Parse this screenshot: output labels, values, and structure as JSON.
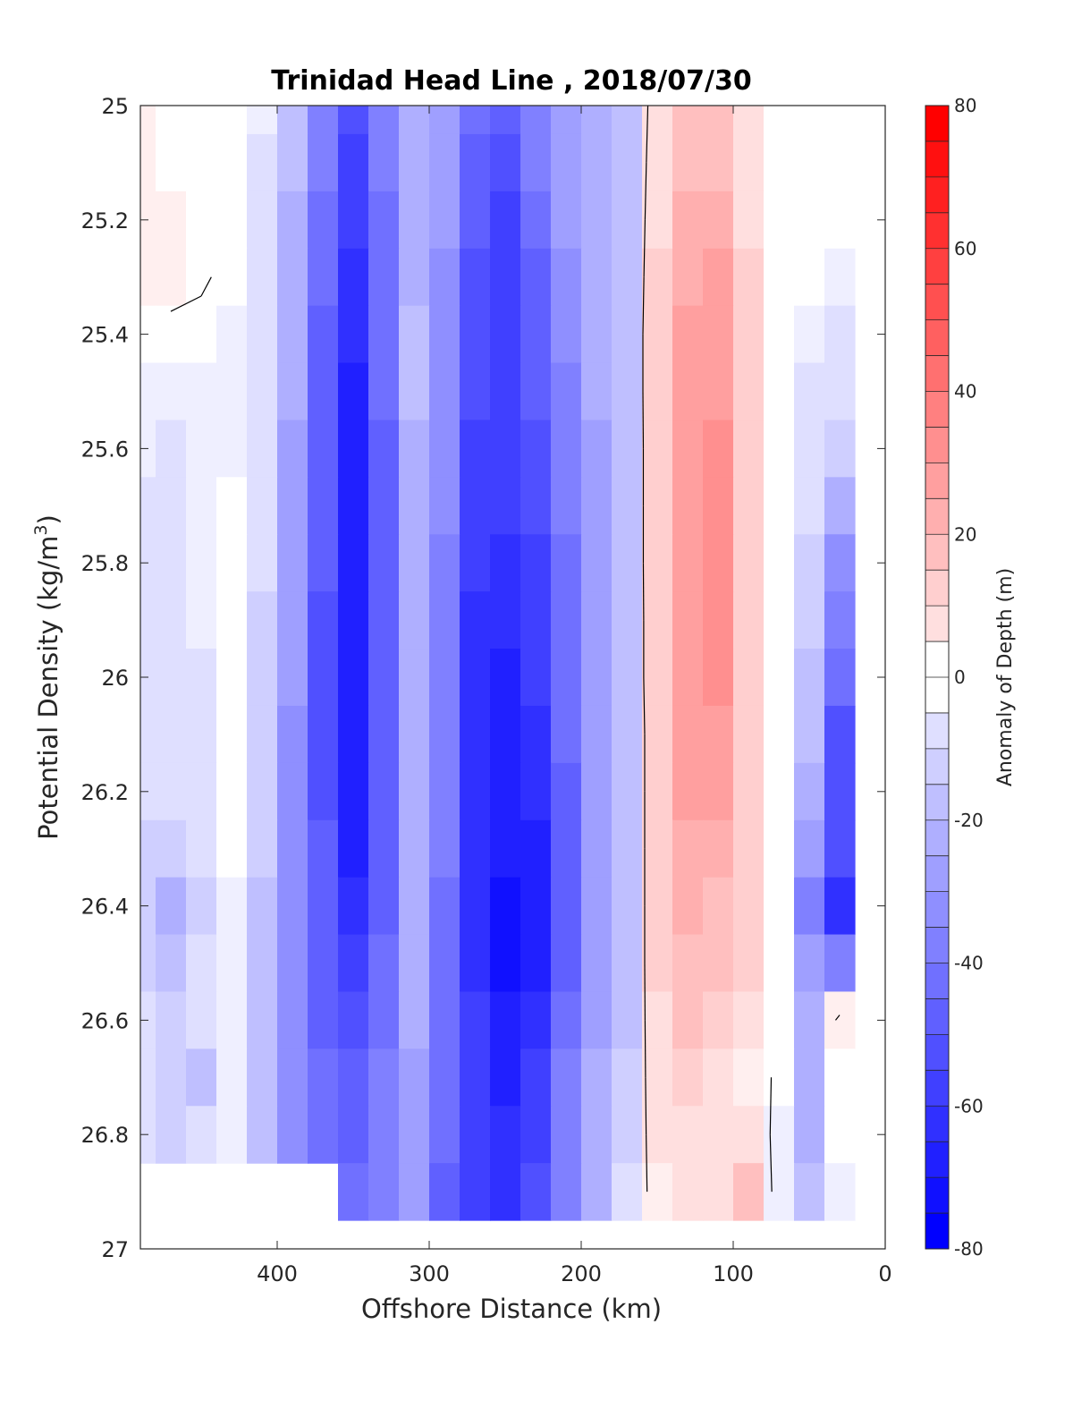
{
  "chart_data": {
    "type": "heatmap",
    "title": "Trinidad Head Line , 2018/07/30",
    "xlabel": "Offshore Distance (km)",
    "ylabel_main": "Potential Density (kg/m",
    "ylabel_sup": "3",
    "ylabel_end": ")",
    "colorbar_label": "Anomaly of Depth (m)",
    "xlim": [
      490,
      0
    ],
    "x_reversed": true,
    "ylim": [
      25,
      27
    ],
    "y_reversed": true,
    "clim": [
      -80,
      80
    ],
    "colormap": {
      "negative": "#0000ff",
      "zero": "#ffffff",
      "positive": "#ff0000"
    },
    "contour_level": 0,
    "contour_color": "#000000",
    "x_ticks": [
      400,
      300,
      200,
      100,
      0
    ],
    "y_ticks": [
      25,
      25.2,
      25.4,
      25.6,
      25.8,
      26,
      26.2,
      26.4,
      26.6,
      26.8,
      27
    ],
    "y_tick_labels": [
      "25",
      "25.2",
      "25.4",
      "25.6",
      "25.8",
      "26",
      "26.2",
      "26.4",
      "26.6",
      "26.8",
      "27"
    ],
    "colorbar_ticks": [
      80,
      60,
      40,
      20,
      0,
      -20,
      -40,
      -60,
      -80
    ],
    "x": [
      490,
      470,
      450,
      430,
      410,
      390,
      370,
      350,
      330,
      310,
      290,
      270,
      250,
      230,
      210,
      190,
      170,
      150,
      130,
      110,
      90,
      70,
      50,
      30
    ],
    "y": [
      25.0,
      25.1,
      25.2,
      25.3,
      25.4,
      25.5,
      25.6,
      25.7,
      25.8,
      25.9,
      26.0,
      26.1,
      26.2,
      26.3,
      26.4,
      26.5,
      26.6,
      26.7,
      26.8,
      26.9
    ],
    "z": [
      [
        3,
        0,
        0,
        0,
        -6,
        -22,
        -40,
        -55,
        -40,
        -25,
        -30,
        -45,
        -50,
        -40,
        -30,
        -25,
        -18,
        8,
        18,
        18,
        8,
        0,
        0,
        0
      ],
      [
        4,
        2,
        0,
        0,
        -8,
        -22,
        -42,
        -58,
        -42,
        -25,
        -30,
        -48,
        -55,
        -42,
        -32,
        -25,
        -18,
        10,
        20,
        20,
        10,
        0,
        0,
        0
      ],
      [
        5,
        3,
        1,
        0,
        -8,
        -24,
        -45,
        -62,
        -44,
        -24,
        -32,
        -52,
        -60,
        -45,
        -32,
        -25,
        -18,
        12,
        24,
        24,
        12,
        0,
        0,
        0
      ],
      [
        5,
        3,
        1,
        -2,
        -10,
        -25,
        -46,
        -64,
        -45,
        -24,
        -34,
        -54,
        -60,
        -48,
        -34,
        -25,
        -18,
        14,
        26,
        28,
        14,
        0,
        0,
        -3
      ],
      [
        0,
        -2,
        -2,
        -4,
        -10,
        -25,
        -48,
        -66,
        -46,
        -22,
        -34,
        -54,
        -58,
        -50,
        -36,
        -26,
        -18,
        16,
        30,
        30,
        16,
        0,
        -4,
        -8
      ],
      [
        -5,
        -5,
        -6,
        -6,
        -12,
        -26,
        -50,
        -68,
        -46,
        -22,
        -36,
        -56,
        -58,
        -52,
        -38,
        -27,
        -18,
        16,
        32,
        32,
        16,
        0,
        -8,
        -12
      ],
      [
        -7,
        -8,
        -7,
        -4,
        -12,
        -28,
        -50,
        -68,
        -48,
        -24,
        -36,
        -58,
        -60,
        -54,
        -40,
        -28,
        -19,
        16,
        32,
        34,
        16,
        0,
        -10,
        -16
      ],
      [
        -8,
        -8,
        -6,
        0,
        -12,
        -30,
        -52,
        -68,
        -48,
        -24,
        -36,
        -60,
        -62,
        -56,
        -42,
        -28,
        -19,
        16,
        32,
        34,
        16,
        0,
        -12,
        -26
      ],
      [
        -9,
        -8,
        -6,
        0,
        -12,
        -30,
        -52,
        -70,
        -50,
        -24,
        -38,
        -62,
        -64,
        -58,
        -44,
        -29,
        -19,
        16,
        32,
        36,
        16,
        0,
        -14,
        -34
      ],
      [
        -10,
        -9,
        -7,
        0,
        -14,
        -32,
        -54,
        -70,
        -50,
        -24,
        -38,
        -64,
        -66,
        -60,
        -44,
        -30,
        -20,
        16,
        32,
        36,
        16,
        0,
        -16,
        -40
      ],
      [
        -10,
        -10,
        -8,
        0,
        -14,
        -32,
        -54,
        -72,
        -50,
        -24,
        -40,
        -64,
        -68,
        -62,
        -46,
        -30,
        -20,
        16,
        30,
        34,
        16,
        0,
        -18,
        -46
      ],
      [
        -11,
        -10,
        -8,
        0,
        -14,
        -34,
        -54,
        -72,
        -50,
        -24,
        -40,
        -66,
        -70,
        -64,
        -46,
        -31,
        -20,
        14,
        28,
        32,
        14,
        0,
        -20,
        -54
      ],
      [
        -12,
        -12,
        -9,
        0,
        -16,
        -34,
        -54,
        -70,
        -48,
        -24,
        -42,
        -66,
        -72,
        -66,
        -48,
        -31,
        -20,
        14,
        28,
        28,
        14,
        0,
        -24,
        -54
      ],
      [
        -14,
        -16,
        -12,
        -2,
        -16,
        -34,
        -52,
        -68,
        -48,
        -24,
        -42,
        -66,
        -72,
        -68,
        -48,
        -31,
        -20,
        14,
        26,
        26,
        14,
        0,
        -30,
        -56
      ],
      [
        -16,
        -24,
        -14,
        -4,
        -18,
        -34,
        -50,
        -66,
        -48,
        -26,
        -44,
        -66,
        -74,
        -70,
        -48,
        -31,
        -20,
        14,
        24,
        22,
        14,
        0,
        -38,
        -64
      ],
      [
        -14,
        -20,
        -12,
        -4,
        -18,
        -34,
        -50,
        -62,
        -46,
        -26,
        -44,
        -64,
        -74,
        -70,
        -48,
        -30,
        -20,
        14,
        22,
        20,
        14,
        0,
        -32,
        -40
      ],
      [
        -12,
        -14,
        -10,
        -4,
        -18,
        -34,
        -48,
        -56,
        -44,
        -26,
        -44,
        -62,
        -72,
        -66,
        -46,
        -28,
        -18,
        12,
        18,
        16,
        10,
        0,
        -26,
        4
      ],
      [
        -10,
        -16,
        -20,
        -6,
        -18,
        -34,
        -46,
        -50,
        -40,
        -28,
        -46,
        -60,
        -68,
        -62,
        -42,
        -26,
        -16,
        10,
        14,
        12,
        6,
        -2,
        -24,
        0
      ],
      [
        -12,
        -14,
        -12,
        -6,
        -18,
        -34,
        -46,
        -48,
        -38,
        -28,
        -46,
        -60,
        -66,
        -58,
        -40,
        -24,
        -14,
        8,
        12,
        10,
        10,
        -4,
        -24,
        0
      ],
      [
        null,
        null,
        null,
        null,
        null,
        null,
        null,
        -46,
        -38,
        -30,
        -48,
        -60,
        -64,
        -56,
        -40,
        -24,
        -12,
        6,
        10,
        12,
        20,
        -6,
        -20,
        -4
      ]
    ]
  }
}
